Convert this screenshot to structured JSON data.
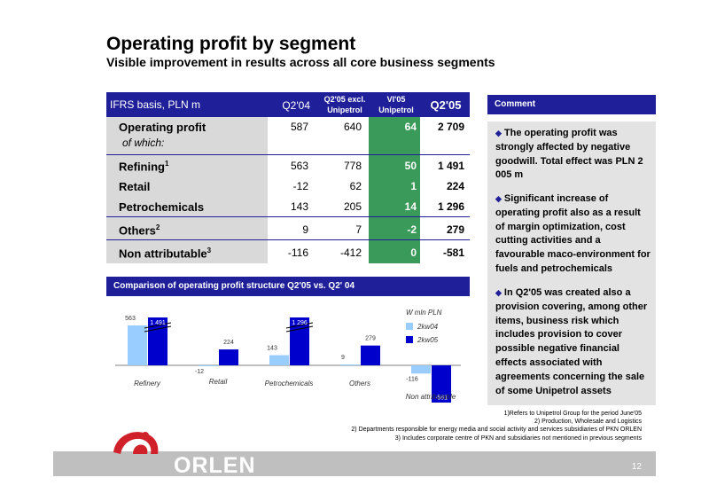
{
  "header": {
    "title": "Operating profit by segment",
    "subtitle": "Visible improvement in results across all core business segments"
  },
  "table": {
    "header_basis": "IFRS basis, PLN m",
    "header_q204": "Q2'04",
    "header_excl_l1": "Q2'05 excl.",
    "header_excl_l2": "Unipetrol",
    "header_vi05_l1": "VI'05",
    "header_vi05_l2": "Unipetrol",
    "header_q205": "Q2'05",
    "of_which": "of which:",
    "rows": [
      {
        "label": "Operating profit",
        "sup": "",
        "q204": "587",
        "q205_excl": "640",
        "vi05": "64",
        "q205": "2 709"
      },
      {
        "label": "Refining",
        "sup": "1",
        "q204": "563",
        "q205_excl": "778",
        "vi05": "50",
        "q205": "1 491"
      },
      {
        "label": "Retail",
        "sup": "",
        "q204": "-12",
        "q205_excl": "62",
        "vi05": "1",
        "q205": "224"
      },
      {
        "label": "Petrochemicals",
        "sup": "",
        "q204": "143",
        "q205_excl": "205",
        "vi05": "14",
        "q205": "1 296"
      },
      {
        "label": "Others",
        "sup": "2",
        "q204": "9",
        "q205_excl": "7",
        "vi05": "-2",
        "q205": "279"
      },
      {
        "label": "Non attributable",
        "sup": "3",
        "q204": "-116",
        "q205_excl": "-412",
        "vi05": "0",
        "q205": "-581"
      }
    ]
  },
  "comment": {
    "header": "Comment",
    "items": [
      "The operating profit was strongly affected by negative goodwill. Total effect was PLN 2 005 m",
      "Significant increase of operating profit also as a result of margin optimization, cost cutting activities and a favourable maco-environment for fuels and petrochemicals",
      "In Q2'05 was created also a provision covering, among other items, business risk which includes provision to cover possible negative financial effects associated with agreements concerning the sale of some Unipetrol assets"
    ]
  },
  "chart_header": "Comparison of operating profit structure Q2'05 vs. Q2' 04",
  "chart_data": {
    "type": "bar",
    "categories": [
      "Refinery",
      "Retail",
      "Petrochemicals",
      "Others",
      "Non attributable"
    ],
    "series": [
      {
        "name": "2kw04",
        "values": [
          563,
          -12,
          143,
          9,
          -116
        ]
      },
      {
        "name": "2kw05",
        "values": [
          1491,
          224,
          1296,
          279,
          -581
        ]
      }
    ],
    "value_labels": {
      "2kw04": [
        "563",
        "-12",
        "143",
        "9",
        "-116"
      ],
      "2kw05": [
        "1 491",
        "224",
        "1 296",
        "279",
        "-581"
      ]
    },
    "unit_label": "W mln PLN",
    "axis_break": true,
    "colors": {
      "2kw04": "#99ccff",
      "2kw05": "#0000cc"
    }
  },
  "footnotes": [
    "1)Refers to Unipetrol Group for the period June'05",
    "2) Production, Wholesale and Logistics",
    "2) Departments responsible for energy media and social activity and services subsidiaries of PKN ORLEN",
    "3) Includes corporate centre of PKN and subsidiaries not mentioned in previous segments"
  ],
  "footer": {
    "logo_text": "ORLEN",
    "page_number": "12"
  },
  "colors": {
    "navy": "#1f1f99",
    "green": "#3a9a59",
    "logo_red": "#d0202a",
    "grey": "#bfbfbf"
  }
}
